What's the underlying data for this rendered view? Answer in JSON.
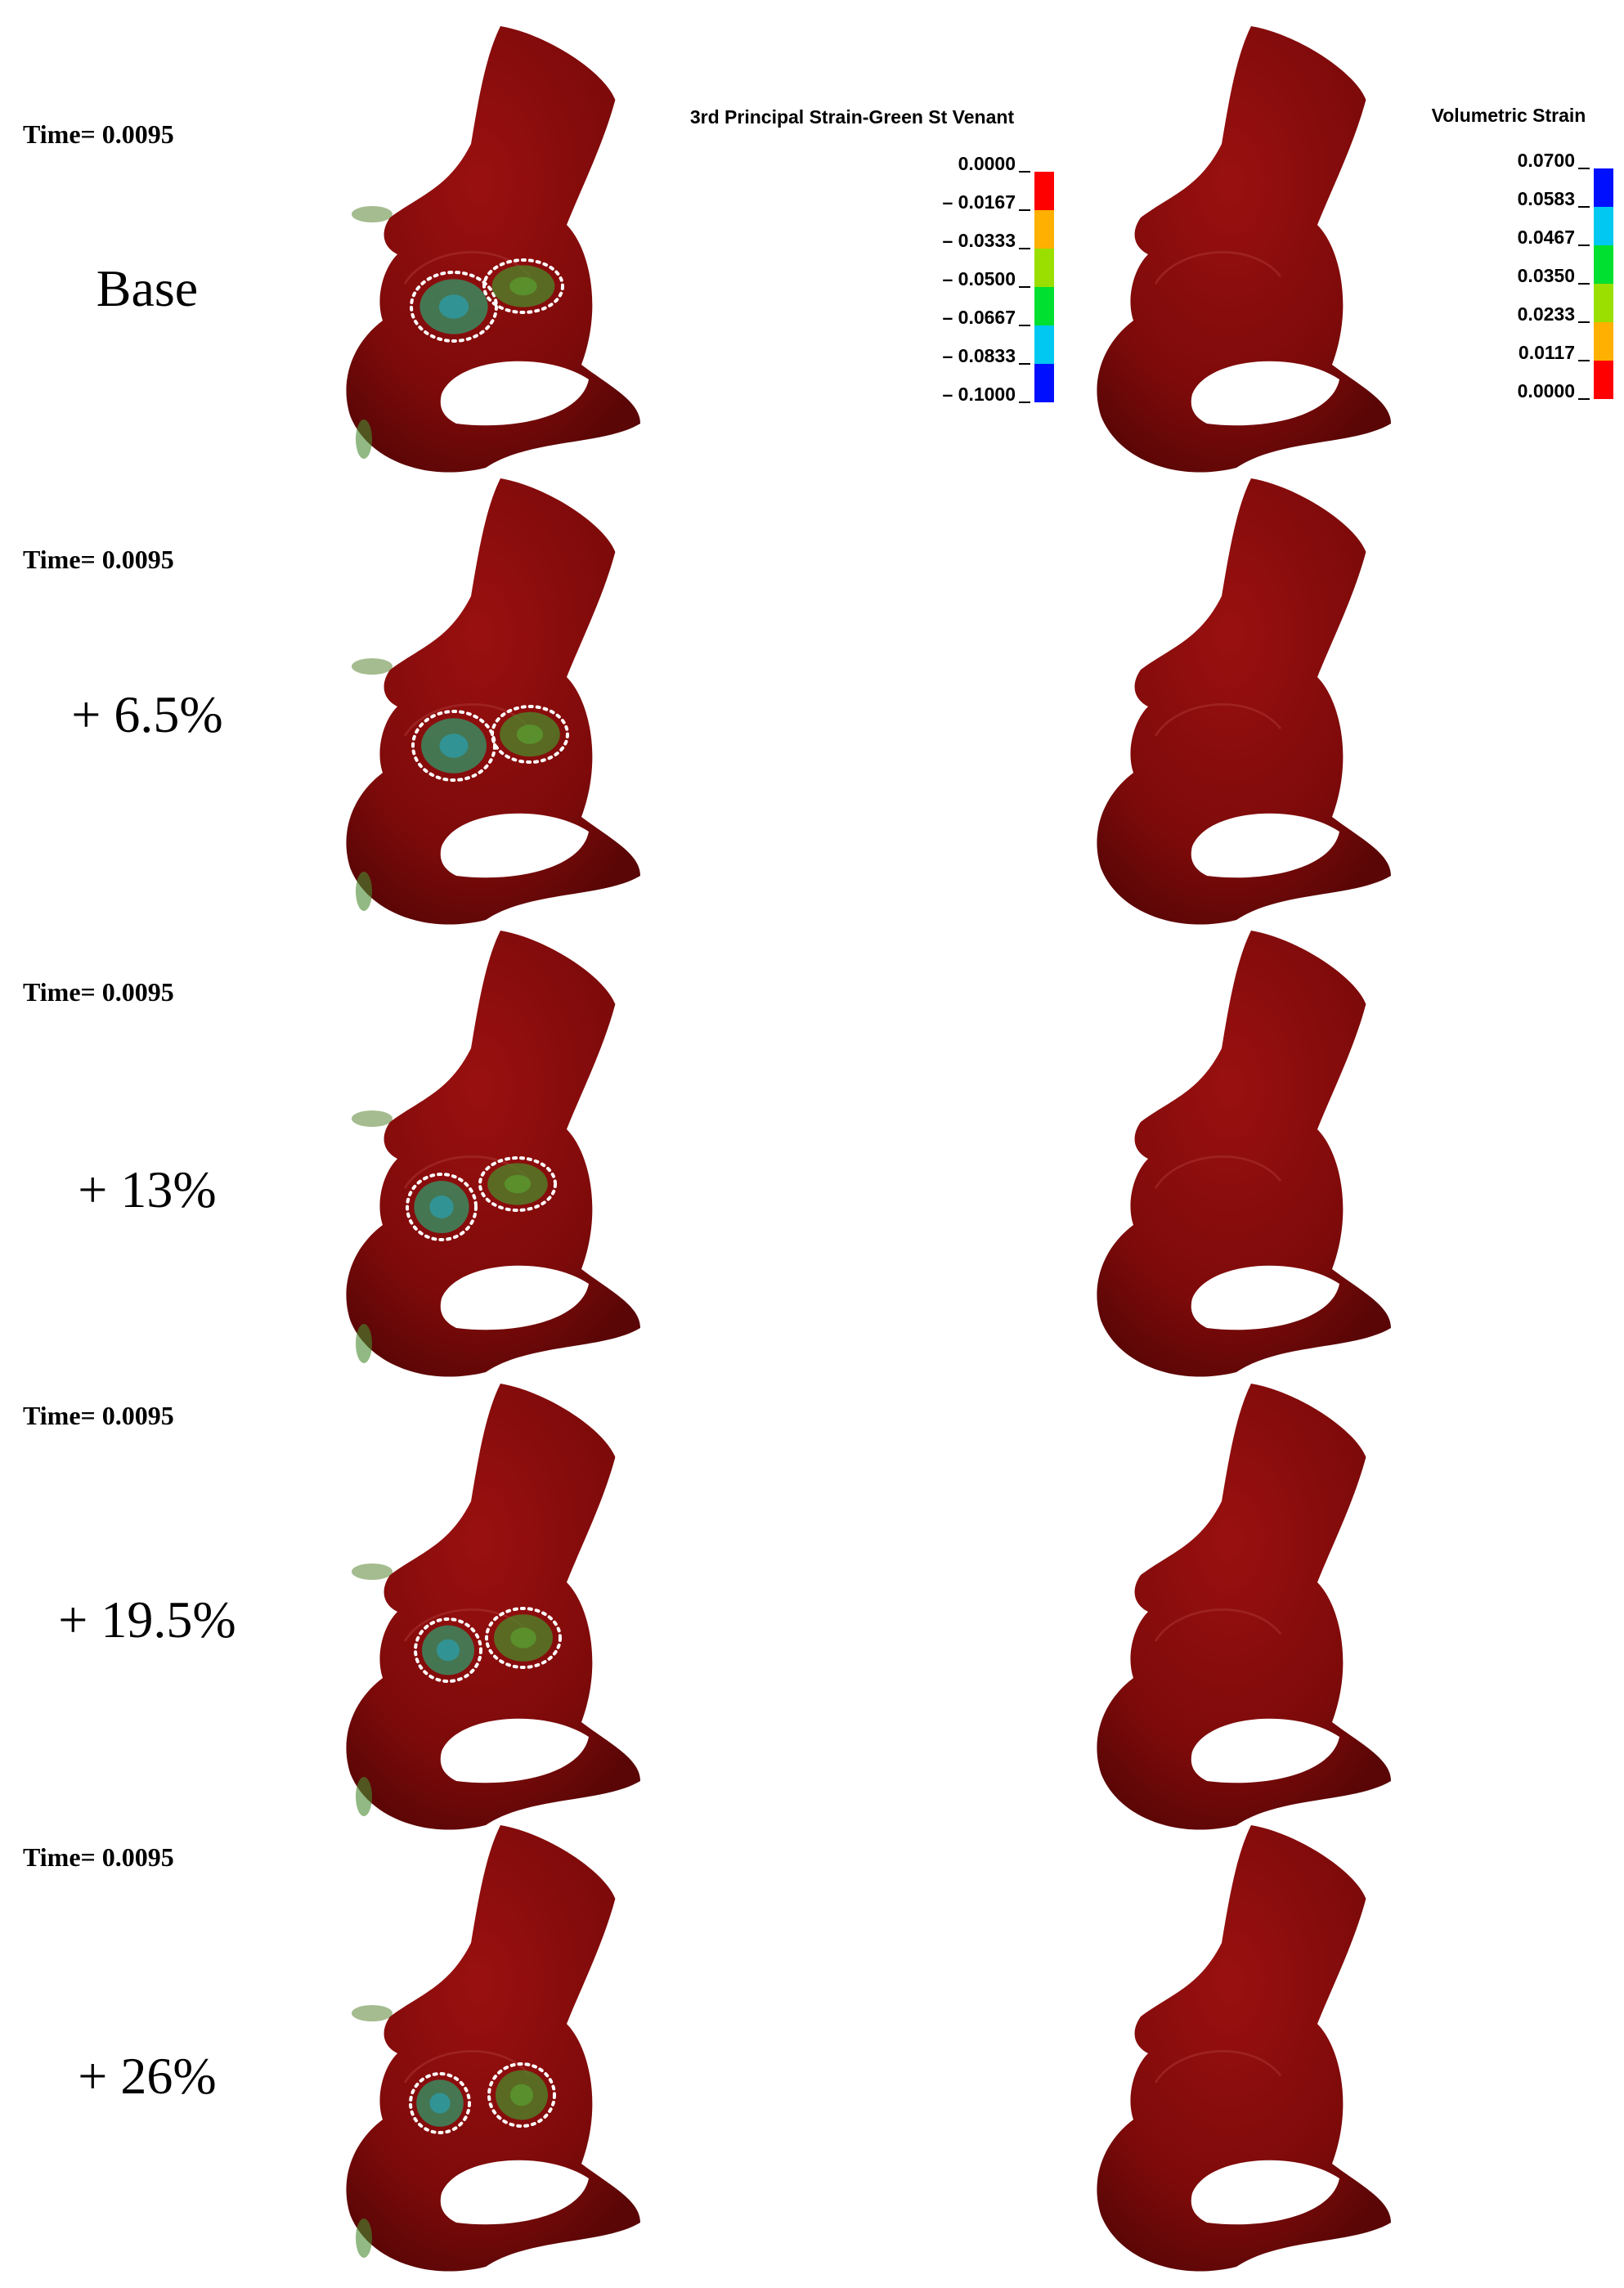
{
  "rows": [
    {
      "time": "Time= 0.0095",
      "label": "Base"
    },
    {
      "time": "Time= 0.0095",
      "label": "+ 6.5%"
    },
    {
      "time": "Time= 0.0095",
      "label": "+ 13%"
    },
    {
      "time": "Time= 0.0095",
      "label": "+ 19.5%"
    },
    {
      "time": "Time= 0.0095",
      "label": "+ 26%"
    }
  ],
  "legends": [
    {
      "title": "3rd Principal Strain-Green St Venant",
      "ticks": [
        "0.0000",
        "– 0.0167",
        "– 0.0333",
        "– 0.0500",
        "– 0.0667",
        "– 0.0833",
        "– 0.1000"
      ],
      "colors": [
        "#ff0000",
        "#ffb000",
        "#9adf00",
        "#00e030",
        "#00c8f0",
        "#0010ff"
      ]
    },
    {
      "title": "Volumetric Strain",
      "ticks": [
        "0.0700",
        "0.0583",
        "0.0467",
        "0.0350",
        "0.0233",
        "0.0117",
        "0.0000"
      ],
      "colors": [
        "#0010ff",
        "#00c8f0",
        "#00e030",
        "#9adf00",
        "#ffb000",
        "#ff0000"
      ]
    }
  ]
}
